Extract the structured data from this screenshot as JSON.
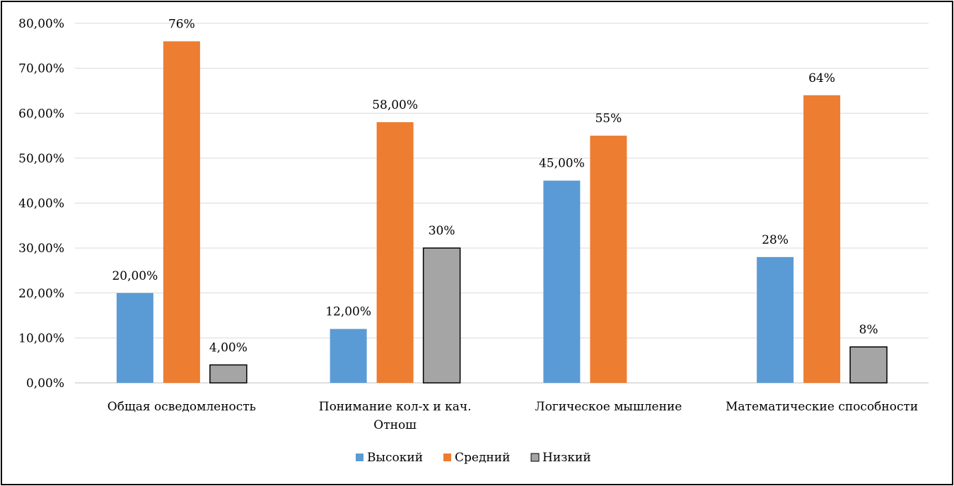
{
  "chart_data": {
    "type": "bar",
    "title": "",
    "xlabel": "",
    "ylabel": "",
    "ylim": [
      0,
      80
    ],
    "yticks": [
      "0,00%",
      "10,00%",
      "20,00%",
      "30,00%",
      "40,00%",
      "50,00%",
      "60,00%",
      "70,00%",
      "80,00%"
    ],
    "grid": true,
    "legend_position": "bottom",
    "categories": [
      [
        "Общая осведомленость"
      ],
      [
        "Понимание кол-х и кач.",
        "Отнош"
      ],
      [
        "Логическое мышление"
      ],
      [
        "Математические способности"
      ]
    ],
    "series": [
      {
        "name": "Высокий",
        "color": "#5B9BD5",
        "values": [
          20,
          12,
          45,
          28
        ],
        "labels": [
          "20,00%",
          "12,00%",
          "45,00%",
          "28%"
        ]
      },
      {
        "name": "Средний",
        "color": "#ED7D31",
        "values": [
          76,
          58,
          55,
          64
        ],
        "labels": [
          "76%",
          "58,00%",
          "55%",
          "64%"
        ]
      },
      {
        "name": "Низкий",
        "color": "#A5A5A5",
        "values": [
          4,
          30,
          null,
          8
        ],
        "labels": [
          "4,00%",
          "30%",
          "",
          "8%"
        ]
      }
    ]
  }
}
